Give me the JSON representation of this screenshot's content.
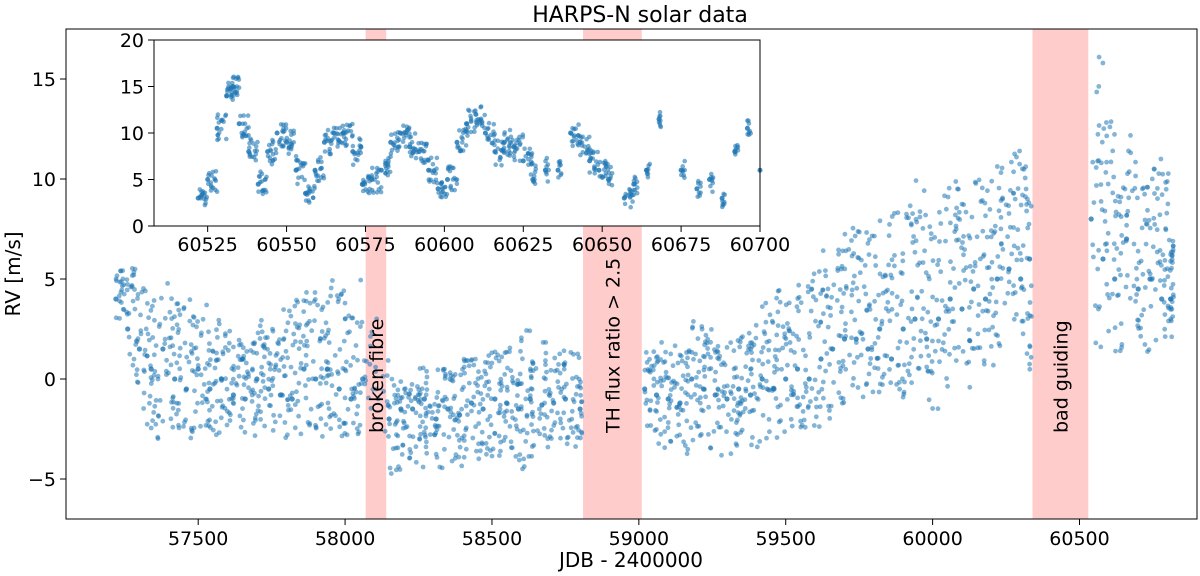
{
  "chart_data": {
    "type": "scatter",
    "title": "HARPS-N solar data",
    "xlabel": "JDB - 2400000",
    "ylabel": "RV [m/s]",
    "xlim": [
      57050,
      60900
    ],
    "ylim": [
      -7,
      17.5
    ],
    "xticks": [
      57500,
      58000,
      58500,
      59000,
      59500,
      60000,
      60500
    ],
    "yticks": [
      -5,
      0,
      5,
      10,
      15
    ],
    "ytick_labels": [
      "−5",
      "0",
      "5",
      "10",
      "15"
    ],
    "grid": false,
    "marker_color": "#1f77b4",
    "span_color": "#ffcccc",
    "excluded_regions": [
      {
        "x_start": 58070,
        "x_end": 58140,
        "label": "broken fibre"
      },
      {
        "x_start": 58810,
        "x_end": 59010,
        "label": "TH flux ratio > 2.5"
      },
      {
        "x_start": 60340,
        "x_end": 60530,
        "label": "bad guiding"
      }
    ],
    "series": [
      {
        "name": "RV",
        "x": [
          57220,
          57260,
          57300,
          57340,
          57380,
          57420,
          57460,
          57500,
          57540,
          57580,
          57620,
          57660,
          57700,
          57740,
          57780,
          57820,
          57860,
          57900,
          57940,
          57980,
          58020,
          58060,
          58150,
          58190,
          58230,
          58270,
          58310,
          58350,
          58390,
          58430,
          58470,
          58510,
          58550,
          58590,
          58630,
          58670,
          58710,
          58750,
          58800,
          59020,
          59060,
          59100,
          59140,
          59180,
          59220,
          59260,
          59300,
          59340,
          59380,
          59420,
          59460,
          59500,
          59540,
          59580,
          59620,
          59660,
          59700,
          59740,
          59780,
          59820,
          59860,
          59900,
          59940,
          59980,
          60020,
          60060,
          60100,
          60140,
          60180,
          60220,
          60260,
          60300,
          60330,
          60540,
          60580,
          60620,
          60660,
          60700,
          60740,
          60780,
          60810
        ],
        "y": [
          4.0,
          2.5,
          1.5,
          0.5,
          1.5,
          0.0,
          -0.5,
          0.5,
          -0.5,
          0.0,
          -0.8,
          -1.0,
          0.0,
          -0.5,
          -0.8,
          -1.0,
          0.5,
          0.0,
          0.5,
          -0.5,
          -1.0,
          0.0,
          -2.0,
          -1.5,
          -1.5,
          -1.0,
          -2.0,
          -1.5,
          -1.8,
          -1.2,
          -1.5,
          -1.0,
          -1.2,
          -1.5,
          -1.0,
          -1.3,
          -1.2,
          -1.0,
          -1.5,
          -0.5,
          -0.8,
          -1.0,
          -1.2,
          0.0,
          -0.5,
          -0.8,
          -1.0,
          -0.5,
          -0.8,
          0.0,
          -0.5,
          0.0,
          0.5,
          0.0,
          1.0,
          1.5,
          2.0,
          2.0,
          1.5,
          2.5,
          1.0,
          2.5,
          3.0,
          2.0,
          3.0,
          4.0,
          3.5,
          4.5,
          4.0,
          5.0,
          5.5,
          5.0,
          6.0,
          8.0,
          6.0,
          5.0,
          7.0,
          4.5,
          5.0,
          4.0,
          4.0
        ],
        "y_low": [
          3.0,
          -1.0,
          -2.5,
          -3.0,
          -2.5,
          -3.0,
          -3.0,
          -2.5,
          -3.0,
          -2.5,
          -3.0,
          -3.0,
          -2.5,
          -3.0,
          -3.0,
          -3.0,
          -2.5,
          -3.0,
          -2.5,
          -3.0,
          -3.0,
          -3.0,
          -4.8,
          -4.0,
          -4.5,
          -4.0,
          -4.5,
          -4.5,
          -4.5,
          -4.0,
          -4.5,
          -4.0,
          -4.0,
          -4.5,
          -4.0,
          -4.0,
          -4.0,
          -3.5,
          -3.5,
          -3.0,
          -3.5,
          -3.5,
          -4.0,
          -3.5,
          -3.5,
          -4.0,
          -4.0,
          -3.5,
          -3.5,
          -3.0,
          -3.0,
          -2.5,
          -2.5,
          -2.5,
          -2.0,
          -1.5,
          -1.0,
          -1.0,
          -1.5,
          -1.0,
          -2.0,
          -1.0,
          -0.5,
          -1.5,
          -0.5,
          0.0,
          -0.5,
          0.5,
          0.0,
          1.0,
          1.0,
          0.5,
          -1.5,
          1.5,
          1.5,
          1.0,
          2.0,
          1.0,
          1.5,
          1.5,
          2.0
        ],
        "y_high": [
          5.5,
          6.0,
          5.0,
          4.5,
          5.0,
          4.5,
          4.0,
          4.0,
          3.0,
          2.5,
          2.0,
          2.0,
          3.0,
          2.5,
          3.5,
          4.0,
          4.5,
          4.0,
          5.5,
          4.5,
          5.0,
          3.5,
          0.0,
          0.0,
          1.0,
          0.5,
          0.5,
          0.5,
          1.0,
          1.0,
          1.5,
          1.5,
          2.0,
          2.5,
          1.0,
          2.0,
          1.5,
          1.5,
          0.5,
          1.5,
          2.0,
          2.0,
          1.5,
          3.0,
          2.5,
          2.0,
          2.0,
          2.5,
          3.0,
          4.0,
          4.5,
          4.0,
          5.0,
          5.5,
          6.5,
          7.0,
          8.0,
          8.0,
          7.5,
          9.0,
          8.5,
          9.0,
          10.0,
          8.0,
          10.0,
          10.0,
          9.5,
          10.5,
          10.0,
          11.0,
          12.0,
          11.0,
          9.5,
          16.5,
          13.0,
          10.5,
          12.5,
          10.0,
          11.0,
          10.5,
          7.0
        ]
      }
    ],
    "inset": {
      "type": "scatter",
      "xlim": [
        60508,
        60700
      ],
      "ylim": [
        0,
        20
      ],
      "xticks": [
        60525,
        60550,
        60575,
        60600,
        60625,
        60650,
        60675,
        60700
      ],
      "yticks": [
        0,
        5,
        10,
        15,
        20
      ],
      "x": [
        60522,
        60525,
        60528,
        60531,
        60533,
        60535,
        60538,
        60541,
        60544,
        60547,
        60550,
        60553,
        60556,
        60559,
        60562,
        60565,
        60568,
        60571,
        60574,
        60577,
        60580,
        60583,
        60586,
        60589,
        60592,
        60595,
        60598,
        60601,
        60604,
        60607,
        60610,
        60613,
        60616,
        60619,
        60622,
        60625,
        60628,
        60632,
        60636,
        60640,
        60643,
        60646,
        60649,
        60652,
        60657,
        60660,
        60664,
        60668,
        60675,
        60680,
        60684,
        60688,
        60692,
        60696,
        60700
      ],
      "y": [
        3.0,
        5.0,
        10.5,
        14.0,
        15.0,
        11.0,
        8.0,
        4.5,
        8.0,
        10.0,
        9.0,
        6.0,
        3.5,
        6.0,
        9.0,
        10.0,
        10.0,
        8.0,
        4.5,
        5.0,
        6.0,
        9.0,
        10.0,
        8.5,
        8.0,
        6.0,
        4.0,
        5.0,
        9.0,
        11.0,
        12.0,
        10.0,
        8.0,
        9.0,
        8.5,
        7.0,
        5.0,
        6.0,
        6.0,
        10.0,
        9.0,
        7.0,
        6.0,
        5.0,
        3.0,
        4.5,
        6.0,
        11.5,
        6.0,
        4.0,
        5.0,
        3.0,
        8.0,
        10.5,
        6.0
      ],
      "y_low": [
        2.0,
        3.5,
        9.0,
        13.0,
        14.0,
        9.5,
        7.0,
        3.0,
        6.5,
        8.5,
        7.5,
        4.5,
        2.5,
        4.5,
        7.5,
        8.5,
        8.5,
        6.5,
        3.5,
        3.5,
        4.5,
        7.5,
        8.5,
        7.0,
        6.5,
        4.5,
        3.0,
        3.5,
        7.5,
        9.5,
        10.5,
        8.5,
        6.5,
        7.5,
        7.0,
        5.5,
        3.5,
        4.5,
        5.0,
        8.5,
        7.5,
        5.5,
        5.0,
        3.5,
        2.0,
        3.5,
        5.0,
        10.5,
        5.0,
        3.0,
        3.5,
        2.0,
        7.0,
        9.5,
        5.0
      ],
      "y_high": [
        4.0,
        6.0,
        12.0,
        15.5,
        16.3,
        12.5,
        9.5,
        6.0,
        9.5,
        11.0,
        10.5,
        7.5,
        4.5,
        7.5,
        10.5,
        11.0,
        11.0,
        9.5,
        5.5,
        6.5,
        7.5,
        10.5,
        11.0,
        10.0,
        9.5,
        7.5,
        5.0,
        6.5,
        10.5,
        12.5,
        13.0,
        11.5,
        9.5,
        10.5,
        10.0,
        8.5,
        6.5,
        7.5,
        7.0,
        11.0,
        10.0,
        8.5,
        7.0,
        6.5,
        4.0,
        5.5,
        7.0,
        12.5,
        7.0,
        5.0,
        6.5,
        4.0,
        9.0,
        11.5,
        7.0
      ]
    }
  }
}
